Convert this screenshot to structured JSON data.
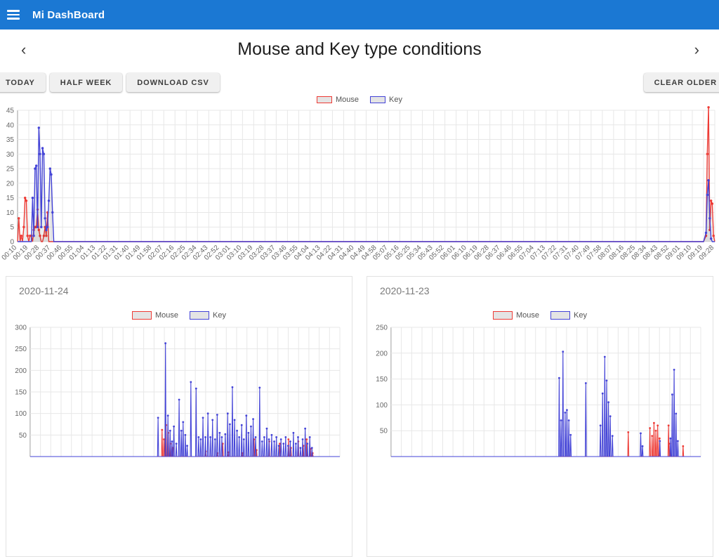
{
  "app_bar": {
    "title": "Mi DashBoard"
  },
  "nav": {
    "title": "Mouse and Key type conditions",
    "prev_icon": "‹",
    "next_icon": "›"
  },
  "toolbar": {
    "today": "TODAY",
    "half_week": "HALF WEEK",
    "download_csv": "DOWNLOAD CSV",
    "clear_older": "CLEAR OLDER"
  },
  "colors": {
    "app_bar": "#1b78d3",
    "mouse": "#ee3b35",
    "key": "#4343d7",
    "fill": "rgba(0,0,0,0.07)",
    "grid": "#e7e7e7",
    "axis": "#9e9e9e"
  },
  "chart_data": [
    {
      "type": "line",
      "title": "Mouse and Key type conditions (today)",
      "ylim": [
        0,
        45
      ],
      "yticks": [
        0,
        5,
        10,
        15,
        20,
        25,
        30,
        35,
        40,
        45
      ],
      "x_unit": "minutes from 00:10, 1-min resolution",
      "x_tick_labels": [
        "00:10",
        "00:19",
        "00:28",
        "00:37",
        "00:46",
        "00:55",
        "01:04",
        "01:13",
        "01:22",
        "01:31",
        "01:40",
        "01:49",
        "01:58",
        "02:07",
        "02:16",
        "02:25",
        "02:34",
        "02:43",
        "02:52",
        "03:01",
        "03:10",
        "03:19",
        "03:28",
        "03:37",
        "03:46",
        "03:55",
        "04:04",
        "04:13",
        "04:22",
        "04:31",
        "04:40",
        "04:49",
        "04:58",
        "05:07",
        "05:16",
        "05:25",
        "05:34",
        "05:43",
        "05:52",
        "06:01",
        "06:10",
        "06:19",
        "06:28",
        "06:37",
        "06:46",
        "06:55",
        "07:04",
        "07:13",
        "07:22",
        "07:31",
        "07:40",
        "07:49",
        "07:58",
        "08:07",
        "08:16",
        "08:25",
        "08:34",
        "08:43",
        "08:52",
        "09:01",
        "09:10",
        "09:19",
        "09:28"
      ],
      "legend_position": "top",
      "grid": true,
      "series": [
        {
          "name": "Mouse",
          "color": "#ee3b35",
          "points": [
            [
              0,
              0
            ],
            [
              1,
              8
            ],
            [
              2,
              0
            ],
            [
              3,
              2
            ],
            [
              4,
              0
            ],
            [
              5,
              5
            ],
            [
              6,
              15
            ],
            [
              7,
              14
            ],
            [
              8,
              2
            ],
            [
              9,
              0
            ],
            [
              10,
              2
            ],
            [
              11,
              2
            ],
            [
              12,
              0
            ],
            [
              13,
              4
            ],
            [
              14,
              5
            ],
            [
              15,
              5
            ],
            [
              16,
              11
            ],
            [
              17,
              4
            ],
            [
              18,
              2
            ],
            [
              19,
              0
            ],
            [
              20,
              0
            ],
            [
              21,
              2
            ],
            [
              22,
              5
            ],
            [
              23,
              2
            ],
            [
              24,
              10
            ],
            [
              25,
              0
            ],
            [
              549,
              0
            ],
            [
              551,
              2
            ],
            [
              552,
              30
            ],
            [
              553,
              46
            ],
            [
              554,
              4
            ],
            [
              555,
              14
            ],
            [
              556,
              13
            ],
            [
              557,
              2
            ],
            [
              558,
              0
            ]
          ]
        },
        {
          "name": "Key",
          "color": "#4343d7",
          "points": [
            [
              0,
              0
            ],
            [
              11,
              0
            ],
            [
              12,
              15
            ],
            [
              13,
              2
            ],
            [
              14,
              25
            ],
            [
              15,
              26
            ],
            [
              16,
              5
            ],
            [
              17,
              39
            ],
            [
              18,
              30
            ],
            [
              19,
              5
            ],
            [
              20,
              32
            ],
            [
              21,
              30
            ],
            [
              22,
              8
            ],
            [
              23,
              4
            ],
            [
              24,
              5
            ],
            [
              25,
              14
            ],
            [
              26,
              25
            ],
            [
              27,
              23
            ],
            [
              28,
              10
            ],
            [
              29,
              0
            ],
            [
              549,
              0
            ],
            [
              551,
              3
            ],
            [
              552,
              16
            ],
            [
              553,
              21
            ],
            [
              554,
              8
            ],
            [
              555,
              1
            ],
            [
              556,
              0
            ],
            [
              558,
              0
            ]
          ]
        }
      ]
    },
    {
      "type": "line",
      "title": "2020-11-24",
      "ylim": [
        0,
        300
      ],
      "yticks": [
        50,
        100,
        150,
        200,
        250,
        300
      ],
      "x_unit": "percent of day (x-axis labels below fold)",
      "legend_position": "top",
      "grid": true,
      "series": [
        {
          "name": "Mouse",
          "color": "#ee3b35",
          "spikes": [
            [
              42.6,
              62
            ],
            [
              43.2,
              40
            ],
            [
              43.9,
              73
            ],
            [
              44.6,
              55
            ],
            [
              45.3,
              30
            ],
            [
              46.0,
              20
            ],
            [
              56.7,
              12
            ],
            [
              60.5,
              8
            ],
            [
              62.2,
              30
            ],
            [
              64.0,
              10
            ],
            [
              68.5,
              8
            ],
            [
              72.3,
              40
            ],
            [
              73.1,
              15
            ],
            [
              77.2,
              35
            ],
            [
              80.6,
              30
            ],
            [
              83.4,
              40
            ],
            [
              84.2,
              20
            ],
            [
              86.6,
              35
            ],
            [
              88.2,
              25
            ],
            [
              89.3,
              40
            ],
            [
              90.5,
              18
            ],
            [
              91.2,
              8
            ]
          ]
        },
        {
          "name": "Key",
          "color": "#4343d7",
          "spikes": [
            [
              41.3,
              90
            ],
            [
              43.7,
              263
            ],
            [
              44.5,
              95
            ],
            [
              45.2,
              60
            ],
            [
              45.8,
              35
            ],
            [
              46.4,
              70
            ],
            [
              47.2,
              30
            ],
            [
              48.1,
              132
            ],
            [
              48.8,
              60
            ],
            [
              49.4,
              80
            ],
            [
              50.1,
              50
            ],
            [
              50.7,
              25
            ],
            [
              51.9,
              173
            ],
            [
              53.6,
              158
            ],
            [
              54.4,
              45
            ],
            [
              55.1,
              40
            ],
            [
              55.8,
              90
            ],
            [
              56.6,
              45
            ],
            [
              57.4,
              100
            ],
            [
              58.2,
              45
            ],
            [
              58.9,
              85
            ],
            [
              59.7,
              40
            ],
            [
              60.4,
              97
            ],
            [
              61.2,
              55
            ],
            [
              61.9,
              45
            ],
            [
              63.0,
              52
            ],
            [
              63.8,
              100
            ],
            [
              64.5,
              75
            ],
            [
              65.3,
              161
            ],
            [
              66.0,
              85
            ],
            [
              66.8,
              60
            ],
            [
              67.5,
              45
            ],
            [
              68.3,
              73
            ],
            [
              69.0,
              40
            ],
            [
              69.8,
              95
            ],
            [
              70.5,
              55
            ],
            [
              71.3,
              70
            ],
            [
              72.0,
              87
            ],
            [
              72.8,
              45
            ],
            [
              74.1,
              160
            ],
            [
              74.9,
              35
            ],
            [
              75.6,
              45
            ],
            [
              76.4,
              65
            ],
            [
              77.1,
              40
            ],
            [
              78.0,
              50
            ],
            [
              78.8,
              35
            ],
            [
              79.5,
              45
            ],
            [
              80.3,
              25
            ],
            [
              81.0,
              40
            ],
            [
              81.8,
              30
            ],
            [
              82.5,
              45
            ],
            [
              83.3,
              25
            ],
            [
              84.0,
              35
            ],
            [
              85.0,
              55
            ],
            [
              85.8,
              30
            ],
            [
              86.5,
              45
            ],
            [
              87.3,
              20
            ],
            [
              88.0,
              40
            ],
            [
              88.8,
              65
            ],
            [
              89.5,
              30
            ],
            [
              90.3,
              45
            ],
            [
              91.0,
              20
            ]
          ]
        }
      ]
    },
    {
      "type": "line",
      "title": "2020-11-23",
      "ylim": [
        0,
        250
      ],
      "yticks": [
        50,
        100,
        150,
        200,
        250
      ],
      "x_unit": "percent of day (x-axis labels below fold)",
      "legend_position": "top",
      "grid": true,
      "series": [
        {
          "name": "Mouse",
          "color": "#ee3b35",
          "spikes": [
            [
              76.6,
              47
            ],
            [
              83.6,
              55
            ],
            [
              84.3,
              40
            ],
            [
              84.9,
              65
            ],
            [
              85.5,
              50
            ],
            [
              86.1,
              60
            ],
            [
              86.7,
              35
            ],
            [
              89.6,
              60
            ],
            [
              90.1,
              25
            ],
            [
              94.3,
              20
            ]
          ]
        },
        {
          "name": "Key",
          "color": "#4343d7",
          "spikes": [
            [
              54.3,
              152
            ],
            [
              54.9,
              70
            ],
            [
              55.5,
              203
            ],
            [
              56.2,
              85
            ],
            [
              56.8,
              90
            ],
            [
              57.4,
              70
            ],
            [
              58.0,
              42
            ],
            [
              62.9,
              142
            ],
            [
              67.6,
              60
            ],
            [
              68.3,
              122
            ],
            [
              69.0,
              193
            ],
            [
              69.6,
              147
            ],
            [
              70.2,
              105
            ],
            [
              70.8,
              78
            ],
            [
              71.5,
              40
            ],
            [
              80.6,
              45
            ],
            [
              81.2,
              20
            ],
            [
              86.8,
              30
            ],
            [
              90.2,
              35
            ],
            [
              90.8,
              120
            ],
            [
              91.4,
              168
            ],
            [
              92.0,
              83
            ],
            [
              92.6,
              30
            ]
          ]
        }
      ]
    }
  ]
}
